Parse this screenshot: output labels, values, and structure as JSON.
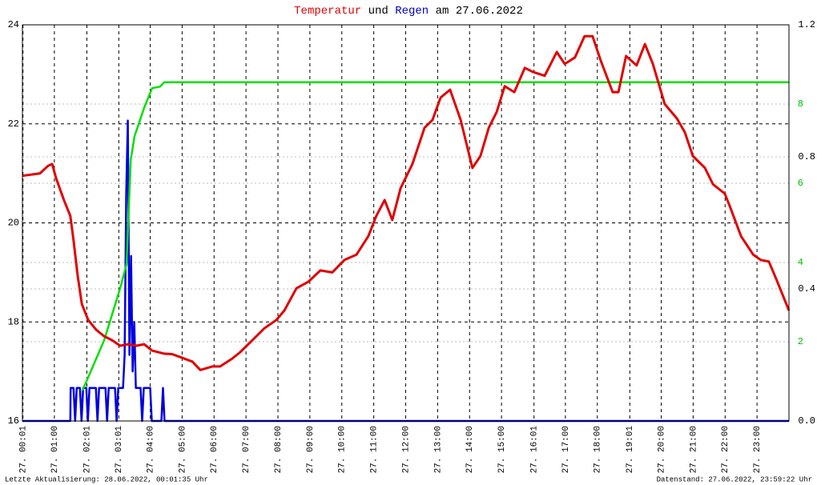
{
  "chart_data": {
    "type": "line",
    "title": [
      "Temperatur",
      "und",
      "Regen",
      "am 27.06.2022"
    ],
    "title_colors": [
      "#e00000",
      "#000000",
      "#0000c0",
      "#000000"
    ],
    "footer_left": "Letzte Aktualisierung: 28.06.2022, 00:01:35 Uhr",
    "footer_right": "Datenstand: 27.06.2022, 23:59:22 Uhr",
    "xlim": [
      0,
      24
    ],
    "xticks": [
      {
        "value": 0.017,
        "label": "27. 00:01"
      },
      {
        "value": 1,
        "label": "27. 01:00"
      },
      {
        "value": 2.017,
        "label": "27. 02:01"
      },
      {
        "value": 3.017,
        "label": "27. 03:01"
      },
      {
        "value": 4,
        "label": "27. 04:00"
      },
      {
        "value": 5,
        "label": "27. 05:00"
      },
      {
        "value": 6,
        "label": "27. 06:00"
      },
      {
        "value": 7,
        "label": "27. 07:00"
      },
      {
        "value": 8,
        "label": "27. 08:00"
      },
      {
        "value": 9,
        "label": "27. 09:00"
      },
      {
        "value": 10,
        "label": "27. 10:00"
      },
      {
        "value": 11,
        "label": "27. 11:00"
      },
      {
        "value": 12,
        "label": "27. 12:00"
      },
      {
        "value": 13,
        "label": "27. 13:00"
      },
      {
        "value": 14,
        "label": "27. 14:00"
      },
      {
        "value": 15,
        "label": "27. 15:00"
      },
      {
        "value": 16.017,
        "label": "27. 16:01"
      },
      {
        "value": 17,
        "label": "27. 17:00"
      },
      {
        "value": 18,
        "label": "27. 18:00"
      },
      {
        "value": 19.017,
        "label": "27. 19:01"
      },
      {
        "value": 20,
        "label": "27. 20:00"
      },
      {
        "value": 21,
        "label": "27. 21:00"
      },
      {
        "value": 22,
        "label": "27. 22:00"
      },
      {
        "value": 23,
        "label": "27. 23:00"
      }
    ],
    "ylim": [
      16,
      24
    ],
    "yticks": [
      16,
      18,
      20,
      22,
      24
    ],
    "y2lim": [
      0,
      1.2
    ],
    "y2ticks": [
      {
        "value": 0,
        "label": "0.0"
      },
      0.4,
      0.8,
      1.2
    ],
    "y3lim": [
      0,
      10
    ],
    "y3ticks": [
      2,
      4,
      6,
      8
    ],
    "y3color": "#00c000",
    "grid": true,
    "series": [
      {
        "color": "#0000e0",
        "axis": "y2",
        "x": [
          0,
          1.5,
          1.51,
          1.6,
          1.65,
          1.7,
          1.8,
          1.85,
          1.9,
          2.0,
          2.05,
          2.1,
          2.3,
          2.35,
          2.4,
          2.6,
          2.65,
          2.7,
          2.9,
          2.95,
          3.0,
          3.15,
          3.2,
          3.25,
          3.3,
          3.35,
          3.4,
          3.45,
          3.5,
          3.55,
          3.7,
          3.75,
          3.8,
          4.0,
          4.05,
          4.35,
          4.4,
          4.45,
          24
        ],
        "values": [
          0,
          0,
          0.1,
          0.1,
          0,
          0.1,
          0.1,
          0,
          0.1,
          0.1,
          0,
          0.1,
          0.1,
          0,
          0.1,
          0.1,
          0,
          0.1,
          0.1,
          0,
          0.1,
          0.1,
          0.2,
          0.69,
          0.91,
          0.2,
          0.5,
          0.15,
          0.3,
          0.1,
          0.1,
          0,
          0.1,
          0.1,
          0,
          0,
          0.1,
          0,
          0
        ]
      },
      {
        "color": "#00e000",
        "axis": "y3",
        "x": [
          1.88,
          2.56,
          3.06,
          3.26,
          3.39,
          3.51,
          3.81,
          4.06,
          4.31,
          4.44,
          24
        ],
        "values": [
          0.77,
          2.04,
          3.35,
          3.96,
          6.59,
          7.19,
          7.9,
          8.4,
          8.44,
          8.55,
          8.55
        ]
      },
      {
        "color": "#e00000",
        "axis": "y",
        "x": [
          0,
          0.55,
          0.8,
          0.93,
          1.05,
          1.3,
          1.5,
          1.6,
          1.73,
          1.86,
          2.06,
          2.31,
          2.56,
          2.81,
          3.06,
          3.31,
          3.56,
          3.81,
          4.06,
          4.44,
          4.69,
          4.94,
          5.32,
          5.57,
          5.94,
          6.19,
          6.57,
          6.82,
          7.2,
          7.57,
          7.95,
          8.2,
          8.58,
          8.95,
          9.33,
          9.7,
          10.08,
          10.46,
          10.83,
          11.08,
          11.34,
          11.58,
          11.84,
          12.21,
          12.59,
          12.84,
          13.09,
          13.39,
          13.72,
          14.09,
          14.34,
          14.6,
          14.85,
          15.1,
          15.4,
          15.73,
          15.98,
          16.35,
          16.73,
          16.98,
          17.3,
          17.6,
          17.85,
          18.1,
          18.48,
          18.66,
          18.9,
          19.23,
          19.49,
          19.74,
          20.11,
          20.49,
          20.74,
          20.99,
          21.37,
          21.62,
          21.99,
          22.17,
          22.5,
          22.88,
          23.12,
          23.37,
          23.62,
          24
        ],
        "values": [
          20.95,
          21.0,
          21.15,
          21.19,
          20.91,
          20.46,
          20.14,
          19.65,
          18.93,
          18.36,
          18.04,
          17.84,
          17.71,
          17.63,
          17.52,
          17.55,
          17.52,
          17.55,
          17.42,
          17.36,
          17.35,
          17.29,
          17.2,
          17.03,
          17.1,
          17.1,
          17.26,
          17.39,
          17.63,
          17.87,
          18.04,
          18.23,
          18.68,
          18.81,
          19.04,
          19.0,
          19.25,
          19.36,
          19.73,
          20.14,
          20.46,
          20.06,
          20.7,
          21.19,
          21.92,
          22.08,
          22.53,
          22.69,
          22.08,
          21.11,
          21.35,
          21.92,
          22.24,
          22.76,
          22.64,
          23.13,
          23.05,
          22.97,
          23.45,
          23.21,
          23.34,
          23.77,
          23.77,
          23.29,
          22.64,
          22.64,
          23.37,
          23.18,
          23.61,
          23.21,
          22.4,
          22.11,
          21.83,
          21.35,
          21.11,
          20.78,
          20.59,
          20.3,
          19.73,
          19.36,
          19.25,
          19.22,
          18.84,
          18.23
        ]
      }
    ]
  }
}
